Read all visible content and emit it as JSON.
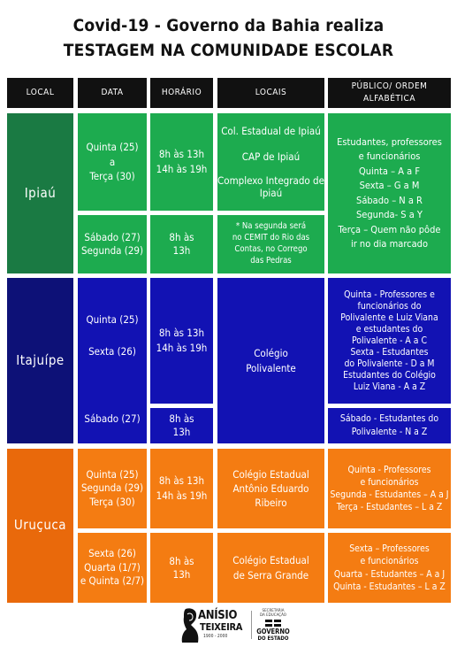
{
  "title": {
    "line1": "Covid-19 - Governo da Bahia realiza",
    "line2": "TESTAGEM NA COMUNIDADE ESCOLAR"
  },
  "headers": {
    "local": "LOCAL",
    "data": "DATA",
    "horario": "HORÁRIO",
    "locais": "LOCAIS",
    "publico": "PÚBLICO/ ORDEM ALFABÉTICA"
  },
  "ipiau": {
    "city": "Ipiaú",
    "row1": {
      "data": [
        "Quinta (25)",
        "a",
        "Terça (30)"
      ],
      "horario": [
        "8h às 13h",
        "14h às 19h"
      ],
      "locais": [
        "Col. Estadual de Ipiaú",
        "CAP de Ipiaú",
        "Complexo Integrado de",
        "Ipiaú"
      ]
    },
    "row2": {
      "data": [
        "Sábado (27)",
        "Segunda (29)"
      ],
      "horario": [
        "8h às",
        "13h"
      ],
      "locais": [
        "* Na segunda será",
        "no CEMIT do Rio das",
        "Contas, no Corrego",
        "das Pedras"
      ]
    },
    "publico": [
      "Estudantes, professores",
      "e funcionários",
      "Quinta – A a F",
      "Sexta – G a M",
      "Sábado – N a R",
      "Segunda- S a Y",
      "Terça – Quem não pôde",
      "ir no dia marcado"
    ]
  },
  "itajuipe": {
    "city": "Itajuípe",
    "data": [
      "Quinta (25)",
      "Sexta (26)",
      "Sábado (27)"
    ],
    "horario1": [
      "8h às 13h",
      "14h às 19h"
    ],
    "horario2": [
      "8h às",
      "13h"
    ],
    "locais": [
      "Colégio",
      "Polivalente"
    ],
    "publico1": [
      "Quinta - Professores e",
      "funcionários do",
      "Polivalente e Luiz Viana",
      "e estudantes do",
      "Polivalente - A a C",
      "Sexta - Estudantes",
      "do Polivalente - D a M",
      "Estudantes do Colégio",
      "Luiz Viana - A a Z"
    ],
    "publico2": [
      "Sábado - Estudantes do",
      "Polivalente - N a Z"
    ]
  },
  "urucuca": {
    "city": "Uruçuca",
    "row1": {
      "data": [
        "Quinta (25)",
        "Segunda (29)",
        "Terça (30)"
      ],
      "horario": [
        "8h às 13h",
        "14h às 19h"
      ],
      "locais": [
        "Colégio Estadual",
        "Antônio Eduardo",
        "Ribeiro"
      ],
      "publico": [
        "Quinta - Professores",
        "e funcionários",
        "Segunda - Estudantes – A a J",
        "Terça - Estudantes – L a Z"
      ]
    },
    "row2": {
      "data": [
        "Sexta (26)",
        "Quarta (1/7)",
        "e Quinta (2/7)"
      ],
      "horario": [
        "8h às",
        "13h"
      ],
      "locais": [
        "Colégio Estadual",
        "de Serra Grande"
      ],
      "publico": [
        "Sexta – Professores",
        "e funcionários",
        "Quarta - Estudantes – A a J",
        "Quinta - Estudantes – L a Z"
      ]
    }
  },
  "footer": {
    "logo1_name": "ANÍSIO",
    "logo1_name2": "TEIXEIRA",
    "logo1_years": "1900 - 2000",
    "logo2_sub1": "SECRETARIA",
    "logo2_sub2": "DA EDUCAÇÃO",
    "logo2_name1": "GOVERNO",
    "logo2_name2": "DO ESTADO"
  }
}
